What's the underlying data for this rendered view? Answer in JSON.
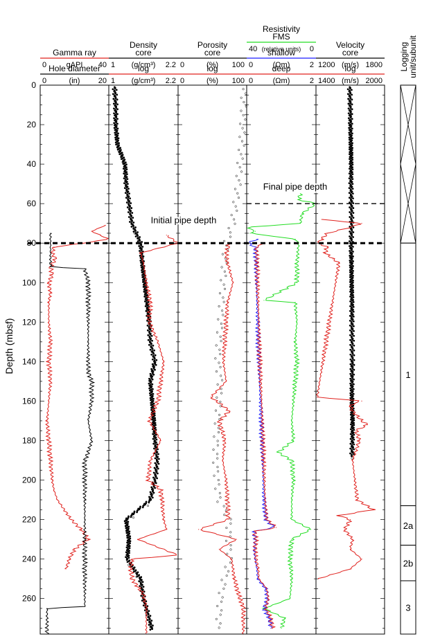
{
  "chart_data": {
    "type": "line",
    "y_axis": {
      "label": "Depth (mbsf)",
      "range": [
        0,
        278
      ],
      "ticks": [
        0,
        20,
        40,
        60,
        80,
        100,
        120,
        140,
        160,
        180,
        200,
        220,
        240,
        260
      ]
    },
    "tracks": [
      {
        "key": "gamma",
        "header_rows": [
          {
            "title": "Gamma ray",
            "color": "#e0201c",
            "min": "0",
            "unit": "gAPI",
            "max": "40"
          },
          {
            "title": "Hole diameter",
            "color": "#000000",
            "min": "0",
            "unit": "(in)",
            "max": "20"
          }
        ],
        "series": [
          {
            "name": "Gamma ray",
            "color": "#e0201c",
            "xlim": [
              0,
              40
            ],
            "style": "line",
            "depth": [
              71,
              74,
              76,
              78,
              80,
              82,
              85,
              88,
              92,
              96,
              100,
              105,
              110,
              120,
              130,
              140,
              150,
              160,
              170,
              180,
              190,
              200,
              205,
              210,
              215,
              220,
              225,
              230,
              235,
              240,
              245
            ],
            "value": [
              38,
              30,
              35,
              40,
              25,
              8,
              7,
              9,
              6,
              7,
              5,
              6,
              5,
              5,
              6,
              5,
              6,
              5,
              4,
              5,
              6,
              7,
              8,
              10,
              14,
              18,
              24,
              28,
              20,
              17,
              15
            ]
          },
          {
            "name": "Hole diameter",
            "color": "#000000",
            "xlim": [
              0,
              20
            ],
            "style": "line",
            "depth": [
              75,
              80,
              92,
              93,
              100,
              110,
              130,
              145,
              150,
              160,
              170,
              180,
              186,
              190,
              200,
              210,
              220,
              230,
              240,
              250,
              264,
              265,
              278
            ],
            "value": [
              3,
              3,
              3,
              13,
              14,
              14,
              14,
              14,
              15,
              15,
              14,
              15,
              14,
              13,
              13,
              13,
              13,
              13,
              13,
              13,
              13,
              2,
              2
            ]
          }
        ]
      },
      {
        "key": "density",
        "header_rows": [
          {
            "title": "Density",
            "color": "#000000",
            "min": "",
            "unit": "",
            "max": ""
          },
          {
            "title": "core",
            "color": "#000000",
            "min": "1",
            "unit": "(g/cm³)",
            "max": "2.2"
          },
          {
            "title": "log",
            "color": "#e0201c",
            "min": "1",
            "unit": "(g/cm³)",
            "max": "2.2"
          }
        ],
        "series": [
          {
            "name": "Density core",
            "color": "#000000",
            "xlim": [
              1,
              2.2
            ],
            "style": "dense",
            "depth": [
              1,
              10,
              20,
              30,
              40,
              50,
              60,
              70,
              80,
              90,
              100,
              110,
              120,
              130,
              140,
              150,
              160,
              170,
              180,
              190,
              200,
              210,
              220,
              230,
              240,
              250,
              260,
              270,
              276
            ],
            "value": [
              1.1,
              1.12,
              1.12,
              1.15,
              1.28,
              1.3,
              1.35,
              1.4,
              1.55,
              1.58,
              1.62,
              1.66,
              1.7,
              1.72,
              1.8,
              1.72,
              1.75,
              1.78,
              1.8,
              1.84,
              1.8,
              1.72,
              1.3,
              1.35,
              1.32,
              1.55,
              1.6,
              1.7,
              1.75
            ]
          },
          {
            "name": "Density log",
            "color": "#e0201c",
            "xlim": [
              1,
              2.2
            ],
            "style": "line",
            "depth": [
              76,
              80,
              85,
              90,
              100,
              110,
              120,
              130,
              140,
              150,
              160,
              170,
              180,
              190,
              200,
              205,
              210,
              220,
              225,
              230,
              238,
              240,
              245,
              250,
              258,
              265,
              270,
              278
            ],
            "value": [
              2.0,
              2.2,
              1.55,
              1.6,
              1.65,
              1.72,
              1.7,
              1.85,
              1.95,
              1.9,
              1.85,
              1.7,
              1.9,
              1.72,
              1.68,
              1.9,
              1.92,
              1.95,
              2.0,
              1.5,
              2.2,
              1.4,
              1.38,
              1.4,
              1.6,
              1.65,
              1.65,
              1.65
            ]
          }
        ]
      },
      {
        "key": "porosity",
        "header_rows": [
          {
            "title": "Porosity",
            "color": "#000000",
            "min": "",
            "unit": "",
            "max": ""
          },
          {
            "title": "core",
            "color": "#000000",
            "min": "0",
            "unit": "(%)",
            "max": "100"
          },
          {
            "title": "log",
            "color": "#e0201c",
            "min": "0",
            "unit": "(%)",
            "max": "100"
          }
        ],
        "series": [
          {
            "name": "Porosity core",
            "color": "#000000",
            "xlim": [
              0,
              100
            ],
            "style": "scatter",
            "depth": [
              2,
              10,
              20,
              30,
              40,
              50,
              60,
              70,
              80,
              90,
              100,
              110,
              120,
              130,
              140,
              150,
              160,
              170,
              180,
              190,
              200,
              210,
              220,
              230,
              240,
              250,
              260,
              270,
              276
            ],
            "value": [
              95,
              96,
              94,
              93,
              90,
              88,
              84,
              80,
              70,
              68,
              66,
              64,
              62,
              60,
              58,
              62,
              60,
              58,
              56,
              55,
              57,
              60,
              75,
              74,
              76,
              68,
              62,
              60,
              58
            ]
          },
          {
            "name": "Porosity log",
            "color": "#e0201c",
            "xlim": [
              0,
              100
            ],
            "style": "line",
            "depth": [
              80,
              85,
              90,
              100,
              110,
              120,
              130,
              140,
              150,
              158,
              165,
              170,
              180,
              190,
              200,
              210,
              220,
              225,
              230,
              235,
              240,
              250,
              260,
              264,
              278
            ],
            "value": [
              75,
              70,
              72,
              80,
              72,
              70,
              68,
              66,
              70,
              48,
              75,
              60,
              68,
              65,
              70,
              72,
              73,
              30,
              85,
              60,
              78,
              82,
              90,
              95,
              95
            ]
          }
        ]
      },
      {
        "key": "resistivity",
        "header_rows": [
          {
            "title": "Resistivity",
            "color": "#000000",
            "min": "",
            "unit": "",
            "max": ""
          },
          {
            "title": "FMS",
            "color": "#22dd22",
            "min": "40",
            "unit": "(relative units)",
            "max": "0"
          },
          {
            "title": "shallow",
            "color": "#1a1aff",
            "min": "0",
            "unit": "(Ωm)",
            "max": "2"
          },
          {
            "title": "deep",
            "color": "#e0201c",
            "min": "0",
            "unit": "(Ωm)",
            "max": "2"
          }
        ],
        "series": [
          {
            "name": "FMS",
            "color": "#22dd22",
            "xlim": [
              40,
              0
            ],
            "style": "line",
            "depth": [
              55,
              58,
              60,
              65,
              70,
              72,
              74,
              75,
              78,
              80,
              90,
              100,
              109,
              110,
              120,
              130,
              140,
              150,
              160,
              170,
              180,
              186,
              190,
              200,
              210,
              220,
              225,
              230,
              240,
              250,
              260,
              265,
              270,
              275
            ],
            "value": [
              9,
              10,
              0,
              8,
              9,
              40,
              35,
              38,
              12,
              10,
              11,
              11,
              30,
              12,
              11,
              12,
              11,
              12,
              13,
              14,
              13,
              22,
              14,
              13,
              14,
              14,
              3,
              14,
              15,
              14,
              15,
              30,
              18,
              20
            ]
          },
          {
            "name": "shallow",
            "color": "#1a1aff",
            "xlim": [
              0,
              2
            ],
            "style": "line",
            "depth": [
              78,
              80,
              82,
              90,
              100,
              110,
              120,
              130,
              140,
              150,
              160,
              170,
              180,
              190,
              200,
              210,
              220,
              224,
              226,
              230,
              235,
              240,
              245,
              250,
              255,
              260,
              265,
              270,
              275
            ],
            "value": [
              0.3,
              0.05,
              0.25,
              0.27,
              0.28,
              0.3,
              0.32,
              0.33,
              0.35,
              0.37,
              0.4,
              0.42,
              0.44,
              0.46,
              0.48,
              0.5,
              0.55,
              0.8,
              0.2,
              0.25,
              0.22,
              0.24,
              0.3,
              0.32,
              0.55,
              0.6,
              0.5,
              0.65,
              0.7
            ]
          },
          {
            "name": "deep",
            "color": "#e0201c",
            "xlim": [
              0,
              2
            ],
            "style": "line",
            "depth": [
              80,
              82,
              90,
              100,
              110,
              120,
              130,
              140,
              150,
              160,
              170,
              180,
              190,
              200,
              210,
              220,
              224,
              226,
              230,
              235,
              240,
              245,
              250,
              255,
              260,
              265,
              270,
              275
            ],
            "value": [
              0.5,
              0.28,
              0.3,
              0.31,
              0.33,
              0.35,
              0.36,
              0.38,
              0.4,
              0.43,
              0.45,
              0.47,
              0.49,
              0.51,
              0.53,
              0.58,
              0.85,
              0.23,
              0.27,
              0.25,
              0.27,
              0.33,
              0.35,
              0.58,
              0.62,
              0.55,
              0.7,
              0.75
            ]
          }
        ]
      },
      {
        "key": "velocity",
        "header_rows": [
          {
            "title": "Velocity",
            "color": "#000000",
            "min": "",
            "unit": "",
            "max": ""
          },
          {
            "title": "core",
            "color": "#000000",
            "min": "1200",
            "unit": "(m/s)",
            "max": "1800"
          },
          {
            "title": "log",
            "color": "#e0201c",
            "min": "1400",
            "unit": "(m/s)",
            "max": "2000"
          }
        ],
        "series": [
          {
            "name": "Velocity core",
            "color": "#000000",
            "xlim": [
              1200,
              1800
            ],
            "style": "dense",
            "depth": [
              1,
              10,
              20,
              30,
              40,
              50,
              60,
              70,
              80,
              90,
              100,
              110,
              120,
              130,
              140,
              150,
              160,
              170,
              180,
              188
            ],
            "value": [
              1495,
              1500,
              1502,
              1505,
              1508,
              1506,
              1510,
              1512,
              1508,
              1510,
              1512,
              1515,
              1514,
              1516,
              1518,
              1515,
              1514,
              1520,
              1518,
              1515
            ]
          },
          {
            "name": "Velocity log",
            "color": "#e0201c",
            "xlim": [
              1400,
              2000
            ],
            "style": "line",
            "depth": [
              68,
              70,
              72,
              75,
              78,
              80,
              82,
              85,
              88,
              90,
              158,
              160,
              162,
              165,
              170,
              172,
              175,
              180,
              190,
              200,
              210,
              215,
              218,
              220,
              225,
              230,
              235,
              240,
              245,
              250
            ],
            "value": [
              1450,
              1800,
              1700,
              1500,
              1450,
              1420,
              1500,
              1480,
              1550,
              1600,
              1410,
              1800,
              1700,
              1720,
              1800,
              1850,
              1750,
              1780,
              1720,
              1740,
              1760,
              1900,
              1600,
              1700,
              1650,
              1720,
              1700,
              1800,
              1700,
              1420
            ]
          }
        ]
      }
    ],
    "reference_lines": [
      {
        "label": "Initial pipe depth",
        "depth": 80,
        "from_track": 0,
        "to_track": 4
      },
      {
        "label": "Final pipe depth",
        "depth": 60,
        "from_track": 3,
        "to_track": 4
      }
    ],
    "units_column": {
      "title_lines": [
        "Logging",
        "unit/subunit"
      ],
      "units": [
        {
          "label": "",
          "top": 0,
          "bottom": 80,
          "crossed": true
        },
        {
          "label": "1",
          "top": 80,
          "bottom": 213,
          "crossed": false
        },
        {
          "label": "2a",
          "top": 213,
          "bottom": 233,
          "crossed": false
        },
        {
          "label": "2b",
          "top": 233,
          "bottom": 251,
          "crossed": false
        },
        {
          "label": "3",
          "top": 251,
          "bottom": 278,
          "crossed": false
        }
      ]
    }
  }
}
